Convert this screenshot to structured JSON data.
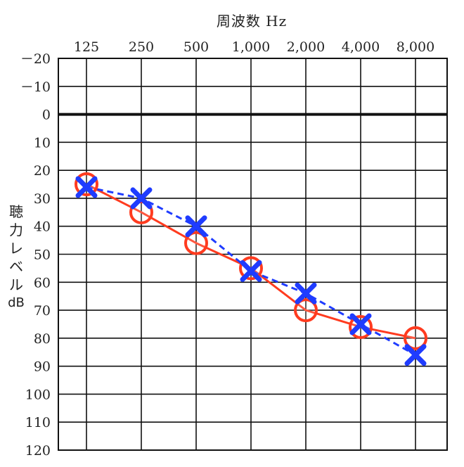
{
  "chart_data": {
    "type": "line",
    "title": "周波数 Hz",
    "xlabel": "周波数 Hz",
    "ylabel_chars": [
      "聴",
      "力",
      "レ",
      "ベ",
      "ル",
      "dB"
    ],
    "categories": [
      "125",
      "250",
      "500",
      "1,000",
      "2,000",
      "4,000",
      "8,000"
    ],
    "y_ticks": [
      "－20",
      "－10",
      "0",
      "10",
      "20",
      "30",
      "40",
      "50",
      "60",
      "70",
      "80",
      "90",
      "100",
      "110",
      "120"
    ],
    "y_values": [
      -20,
      -10,
      0,
      10,
      20,
      30,
      40,
      50,
      60,
      70,
      80,
      90,
      100,
      110,
      120
    ],
    "ylim": [
      -20,
      120
    ],
    "y_inverted": true,
    "grid": true,
    "series": [
      {
        "marker": "circle",
        "line_style": "solid",
        "color": "#ff3b1f",
        "values": [
          25,
          35,
          46,
          55,
          70,
          76,
          80
        ]
      },
      {
        "marker": "cross",
        "line_style": "dashed",
        "color": "#1f3cff",
        "values": [
          26,
          30,
          40,
          56,
          64,
          75,
          86
        ]
      }
    ]
  }
}
